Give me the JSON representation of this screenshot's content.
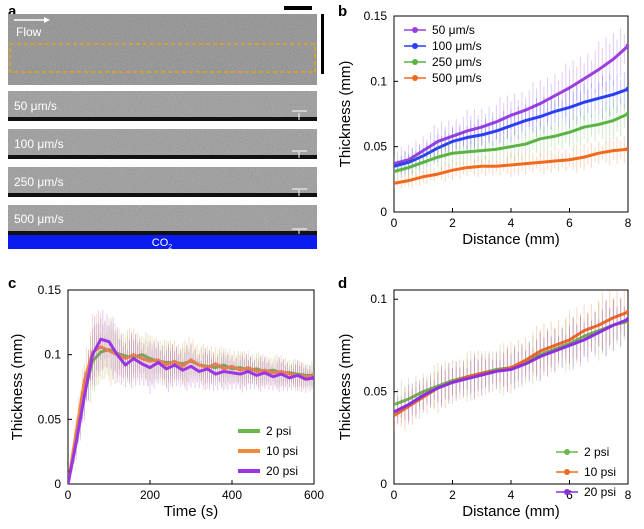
{
  "panel_labels": {
    "a": "a",
    "b": "b",
    "c": "c",
    "d": "d"
  },
  "panel_a": {
    "flow_label": "Flow",
    "strip_labels": [
      "50 μm/s",
      "100 μm/s",
      "250 μm/s",
      "500 μm/s"
    ],
    "co2_label": "CO",
    "co2_subscript": "2",
    "colors": {
      "selection_box": "#e3a51a",
      "co2_bar": "#0a1cf0"
    }
  },
  "chart_data": [
    {
      "panel": "b",
      "type": "line",
      "xlabel": "Distance (mm)",
      "ylabel": "Thickness (mm)",
      "xlim": [
        0,
        8
      ],
      "ylim": [
        0,
        0.15
      ],
      "xticks": [
        0,
        2,
        4,
        6,
        8
      ],
      "xtick_labels": [
        "0",
        "2",
        "4",
        "6",
        "8"
      ],
      "yticks": [
        0,
        0.05,
        0.1,
        0.15
      ],
      "ytick_labels": [
        "0",
        "0.05",
        "0.1",
        "0.15"
      ],
      "legend_position": "top-left",
      "x": [
        0,
        0.5,
        1,
        1.5,
        2,
        2.5,
        3,
        3.5,
        4,
        4.5,
        5,
        5.5,
        6,
        6.5,
        7,
        7.5,
        8
      ],
      "series": [
        {
          "name": "50 μm/s",
          "color": "#9b3fe0",
          "values": [
            0.037,
            0.04,
            0.047,
            0.054,
            0.058,
            0.062,
            0.065,
            0.069,
            0.074,
            0.078,
            0.083,
            0.089,
            0.095,
            0.102,
            0.109,
            0.117,
            0.127
          ],
          "error": [
            0.008,
            0.009,
            0.01,
            0.011,
            0.011,
            0.012,
            0.012,
            0.013,
            0.013,
            0.014,
            0.014,
            0.015,
            0.015,
            0.016,
            0.016,
            0.017,
            0.018
          ]
        },
        {
          "name": "100 μm/s",
          "color": "#2a3ff2",
          "values": [
            0.035,
            0.038,
            0.043,
            0.049,
            0.054,
            0.057,
            0.059,
            0.062,
            0.066,
            0.07,
            0.073,
            0.077,
            0.08,
            0.084,
            0.087,
            0.09,
            0.094
          ],
          "error": [
            0.006,
            0.007,
            0.008,
            0.008,
            0.009,
            0.009,
            0.01,
            0.01,
            0.01,
            0.011,
            0.011,
            0.011,
            0.012,
            0.012,
            0.012,
            0.013,
            0.013
          ]
        },
        {
          "name": "250 μm/s",
          "color": "#5ab344",
          "values": [
            0.031,
            0.034,
            0.038,
            0.042,
            0.045,
            0.046,
            0.047,
            0.048,
            0.05,
            0.052,
            0.056,
            0.058,
            0.061,
            0.065,
            0.067,
            0.07,
            0.075
          ],
          "error": [
            0.006,
            0.007,
            0.007,
            0.008,
            0.008,
            0.008,
            0.009,
            0.009,
            0.009,
            0.01,
            0.01,
            0.01,
            0.011,
            0.011,
            0.012,
            0.012,
            0.013
          ]
        },
        {
          "name": "500 μm/s",
          "color": "#f06a1d",
          "values": [
            0.022,
            0.024,
            0.027,
            0.029,
            0.032,
            0.034,
            0.035,
            0.035,
            0.036,
            0.037,
            0.038,
            0.039,
            0.04,
            0.042,
            0.045,
            0.047,
            0.048
          ],
          "error": [
            0.004,
            0.005,
            0.005,
            0.005,
            0.006,
            0.006,
            0.006,
            0.006,
            0.007,
            0.007,
            0.007,
            0.007,
            0.008,
            0.008,
            0.008,
            0.008,
            0.009
          ]
        }
      ]
    },
    {
      "panel": "c",
      "type": "line",
      "xlabel": "Time (s)",
      "ylabel": "Thickness (mm)",
      "xlim": [
        0,
        600
      ],
      "ylim": [
        0,
        0.15
      ],
      "xticks": [
        0,
        200,
        400,
        600
      ],
      "xtick_labels": [
        "0",
        "200",
        "400",
        "600"
      ],
      "yticks": [
        0,
        0.05,
        0.1,
        0.15
      ],
      "ytick_labels": [
        "0",
        "0.05",
        "0.1",
        "0.15"
      ],
      "legend_position": "bottom-right",
      "x": [
        0,
        20,
        40,
        60,
        80,
        100,
        120,
        140,
        160,
        180,
        200,
        220,
        240,
        260,
        280,
        300,
        320,
        340,
        360,
        380,
        400,
        420,
        440,
        460,
        480,
        500,
        520,
        540,
        560,
        580,
        600
      ],
      "series": [
        {
          "name": "2 psi",
          "color": "#6bb84a",
          "values": [
            0,
            0.035,
            0.07,
            0.095,
            0.102,
            0.104,
            0.101,
            0.099,
            0.098,
            0.1,
            0.097,
            0.095,
            0.094,
            0.094,
            0.093,
            0.095,
            0.092,
            0.091,
            0.09,
            0.092,
            0.089,
            0.09,
            0.088,
            0.089,
            0.087,
            0.088,
            0.086,
            0.086,
            0.085,
            0.084,
            0.084
          ],
          "error": [
            0.003,
            0.01,
            0.016,
            0.02,
            0.02,
            0.018,
            0.016,
            0.015,
            0.015,
            0.014,
            0.014,
            0.013,
            0.013,
            0.012,
            0.012,
            0.012,
            0.011,
            0.011,
            0.011,
            0.01,
            0.01,
            0.01,
            0.01,
            0.009,
            0.009,
            0.009,
            0.009,
            0.008,
            0.008,
            0.008,
            0.008
          ]
        },
        {
          "name": "10 psi",
          "color": "#f28a3a",
          "values": [
            0,
            0.04,
            0.08,
            0.102,
            0.106,
            0.103,
            0.1,
            0.097,
            0.1,
            0.097,
            0.095,
            0.096,
            0.092,
            0.095,
            0.091,
            0.096,
            0.092,
            0.09,
            0.093,
            0.089,
            0.091,
            0.088,
            0.09,
            0.087,
            0.088,
            0.086,
            0.087,
            0.085,
            0.084,
            0.083,
            0.083
          ],
          "error": [
            0.003,
            0.012,
            0.018,
            0.022,
            0.022,
            0.02,
            0.018,
            0.017,
            0.016,
            0.016,
            0.015,
            0.015,
            0.014,
            0.014,
            0.014,
            0.015,
            0.013,
            0.013,
            0.012,
            0.012,
            0.012,
            0.011,
            0.011,
            0.011,
            0.01,
            0.01,
            0.01,
            0.01,
            0.009,
            0.009,
            0.009
          ]
        },
        {
          "name": "20 psi",
          "color": "#9a35e6",
          "values": [
            0,
            0.032,
            0.068,
            0.1,
            0.112,
            0.11,
            0.1,
            0.092,
            0.097,
            0.093,
            0.09,
            0.094,
            0.089,
            0.092,
            0.088,
            0.091,
            0.087,
            0.089,
            0.085,
            0.087,
            0.086,
            0.085,
            0.087,
            0.084,
            0.086,
            0.083,
            0.085,
            0.082,
            0.084,
            0.081,
            0.082
          ],
          "error": [
            0.003,
            0.01,
            0.016,
            0.02,
            0.02,
            0.019,
            0.017,
            0.016,
            0.016,
            0.015,
            0.015,
            0.014,
            0.014,
            0.013,
            0.013,
            0.013,
            0.012,
            0.012,
            0.012,
            0.011,
            0.011,
            0.011,
            0.011,
            0.01,
            0.01,
            0.01,
            0.01,
            0.009,
            0.009,
            0.009,
            0.009
          ]
        }
      ]
    },
    {
      "panel": "d",
      "type": "line",
      "xlabel": "Distance (mm)",
      "ylabel": "Thickness (mm)",
      "xlim": [
        0,
        8
      ],
      "ylim": [
        0,
        0.105
      ],
      "xticks": [
        0,
        2,
        4,
        6,
        8
      ],
      "xtick_labels": [
        "0",
        "2",
        "4",
        "6",
        "8"
      ],
      "yticks": [
        0,
        0.05,
        0.1
      ],
      "ytick_labels": [
        "0",
        "0.05",
        "0.1"
      ],
      "legend_position": "bottom-right",
      "x": [
        0,
        0.5,
        1,
        1.5,
        2,
        2.5,
        3,
        3.5,
        4,
        4.5,
        5,
        5.5,
        6,
        6.5,
        7,
        7.5,
        8
      ],
      "series": [
        {
          "name": "2 psi",
          "color": "#6bb84a",
          "values": [
            0.043,
            0.046,
            0.05,
            0.053,
            0.056,
            0.058,
            0.06,
            0.062,
            0.063,
            0.066,
            0.07,
            0.073,
            0.076,
            0.08,
            0.083,
            0.086,
            0.088
          ],
          "error": [
            0.008,
            0.009,
            0.009,
            0.009,
            0.009,
            0.01,
            0.01,
            0.01,
            0.01,
            0.01,
            0.011,
            0.011,
            0.011,
            0.011,
            0.012,
            0.012,
            0.012
          ]
        },
        {
          "name": "10 psi",
          "color": "#f06a1d",
          "values": [
            0.037,
            0.042,
            0.047,
            0.052,
            0.055,
            0.058,
            0.06,
            0.061,
            0.063,
            0.067,
            0.072,
            0.075,
            0.078,
            0.083,
            0.086,
            0.09,
            0.093
          ],
          "error": [
            0.008,
            0.009,
            0.009,
            0.01,
            0.01,
            0.01,
            0.01,
            0.01,
            0.011,
            0.011,
            0.011,
            0.012,
            0.012,
            0.012,
            0.012,
            0.013,
            0.013
          ]
        },
        {
          "name": "20 psi",
          "color": "#8a2fe0",
          "values": [
            0.039,
            0.043,
            0.048,
            0.052,
            0.055,
            0.057,
            0.059,
            0.061,
            0.062,
            0.065,
            0.069,
            0.072,
            0.075,
            0.078,
            0.082,
            0.086,
            0.089
          ],
          "error": [
            0.007,
            0.008,
            0.008,
            0.008,
            0.009,
            0.009,
            0.009,
            0.009,
            0.009,
            0.01,
            0.01,
            0.01,
            0.01,
            0.011,
            0.011,
            0.011,
            0.011
          ]
        }
      ]
    }
  ]
}
